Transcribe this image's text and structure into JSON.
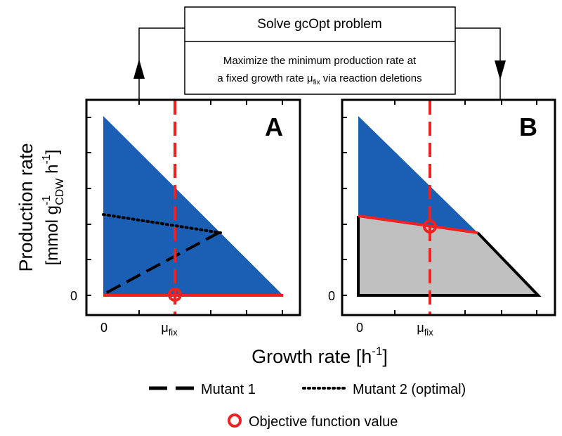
{
  "header": {
    "title": "Solve gcOpt problem",
    "description_line1": "Maximize the minimum production rate at",
    "description_line2_pre": "a fixed growth rate ",
    "description_line2_mu": "μ",
    "description_line2_sub": "fix",
    "description_line2_post": " via reaction deletions"
  },
  "panels": [
    {
      "label": "A"
    },
    {
      "label": "B"
    }
  ],
  "axes": {
    "y_label_line1": "Production rate",
    "y_label_line2_pre": "[mmol g",
    "y_label_line2_sub": "CDW",
    "y_label_line2_sup": "-1",
    "y_label_line2_mid": " h",
    "y_label_line2_sup2": "-1",
    "y_label_line2_post": "]",
    "x_label_pre": "Growth rate [h",
    "x_label_sup": "-1",
    "x_label_post": "]",
    "tick_zero": "0",
    "tick_mu": "μ",
    "tick_mu_sub": "fix"
  },
  "legend": {
    "mutant1": "Mutant 1",
    "mutant2": "Mutant 2 (optimal)",
    "objective": "Objective function value"
  },
  "colors": {
    "feasible_region": "#1a5fb4",
    "reduced_region": "#c0c0c0",
    "fix_line": "#ee2222",
    "marker": "#ee2222"
  }
}
